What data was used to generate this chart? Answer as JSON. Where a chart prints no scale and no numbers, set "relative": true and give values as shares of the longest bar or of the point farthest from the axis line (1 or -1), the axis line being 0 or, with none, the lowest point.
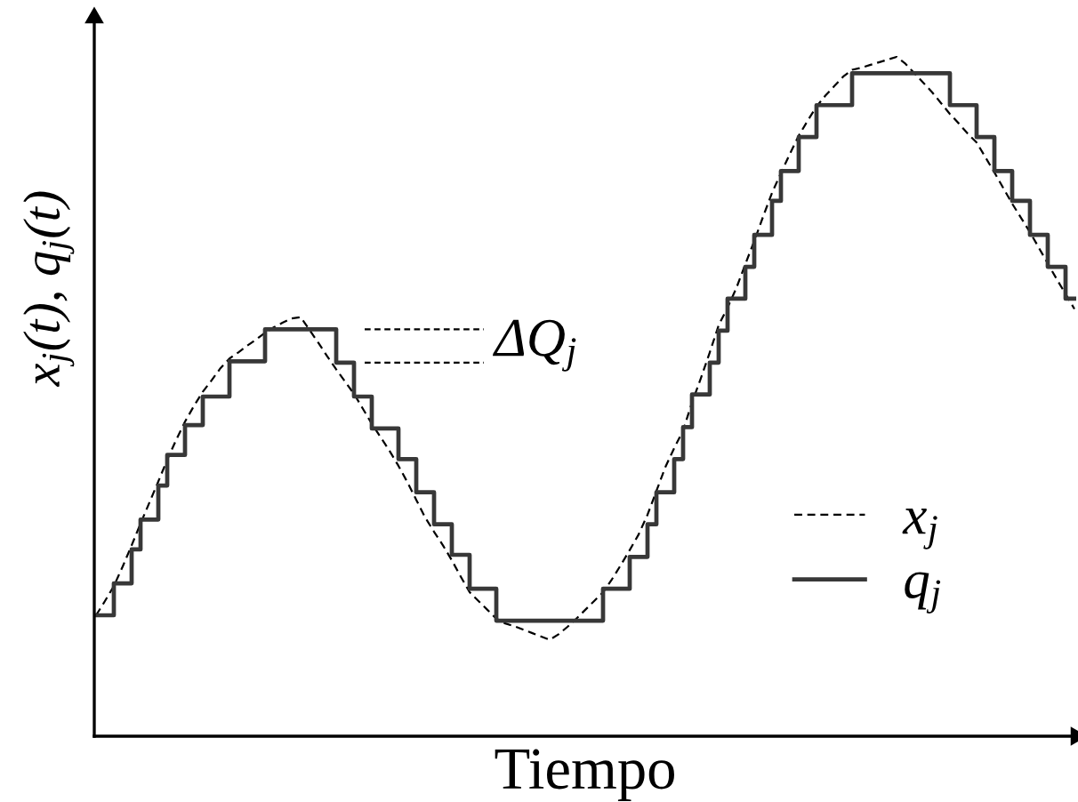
{
  "chart_data": {
    "type": "line",
    "relative": true,
    "xlabel": "Tiempo",
    "ylabel": "x$_{j}$(t), q$_{j}$(t)",
    "legend": "bottom right",
    "annotations": [
      "ΔQ$_{j}$"
    ],
    "categories": [
      null,
      null,
      null,
      null,
      null,
      null,
      null,
      null,
      null,
      null,
      null,
      null,
      null,
      null,
      null,
      null,
      null,
      null,
      null,
      null,
      null,
      null,
      null,
      null,
      null,
      null,
      null,
      null,
      null,
      null,
      null,
      null,
      null,
      null,
      null,
      null,
      null,
      null,
      null,
      null,
      null,
      null,
      null,
      null,
      null,
      null,
      null,
      null,
      null,
      null,
      null,
      null,
      null,
      null,
      null,
      null,
      null,
      null,
      null,
      null,
      null,
      null,
      null,
      null,
      null,
      null,
      null,
      null,
      null,
      null,
      null,
      null,
      null,
      null,
      null,
      null,
      null,
      null,
      null,
      null,
      null,
      null,
      null,
      null,
      null,
      null,
      null,
      null,
      null,
      null,
      null,
      null,
      null,
      null,
      null,
      null,
      null,
      null,
      null,
      null,
      null,
      null,
      null,
      null,
      null,
      null,
      null,
      null,
      null,
      null,
      null
    ],
    "series": [
      {
        "name": "x$_{j}$",
        "line_style": "dashed",
        "color": "#000000",
        "values": [
          0.178,
          0.199,
          0.221,
          0.25,
          0.281,
          0.313,
          0.344,
          0.375,
          0.407,
          0.436,
          0.463,
          0.486,
          0.507,
          0.524,
          0.542,
          0.556,
          0.565,
          0.575,
          0.584,
          0.594,
          0.602,
          0.609,
          0.615,
          0.617,
          0.598,
          0.579,
          0.559,
          0.54,
          0.522,
          0.504,
          0.482,
          0.46,
          0.44,
          0.42,
          0.398,
          0.374,
          0.348,
          0.322,
          0.301,
          0.281,
          0.259,
          0.235,
          0.212,
          0.199,
          0.186,
          0.173,
          0.166,
          0.162,
          0.157,
          0.152,
          0.147,
          0.142,
          0.15,
          0.161,
          0.173,
          0.186,
          0.199,
          0.212,
          0.231,
          0.252,
          0.274,
          0.297,
          0.326,
          0.361,
          0.396,
          0.424,
          0.45,
          0.491,
          0.527,
          0.565,
          0.605,
          0.631,
          0.66,
          0.695,
          0.729,
          0.765,
          0.8,
          0.829,
          0.857,
          0.884,
          0.906,
          0.927,
          0.943,
          0.957,
          0.971,
          0.981,
          0.984,
          0.988,
          0.992,
          0.996,
          1.0,
          0.99,
          0.976,
          0.962,
          0.948,
          0.932,
          0.916,
          0.902,
          0.887,
          0.874,
          0.852,
          0.83,
          0.807,
          0.784,
          0.763,
          0.742,
          0.719,
          0.696,
          0.673,
          0.651,
          0.629
        ]
      },
      {
        "name": "q$_{j}$",
        "type": "step",
        "line_style": "solid",
        "color": "#383838",
        "values": [
          0.178,
          0.178,
          0.225,
          0.225,
          0.275,
          0.319,
          0.319,
          0.369,
          0.414,
          0.414,
          0.458,
          0.458,
          0.5,
          0.5,
          0.5,
          0.552,
          0.552,
          0.552,
          0.552,
          0.599,
          0.599,
          0.599,
          0.599,
          0.599,
          0.599,
          0.599,
          0.599,
          0.55,
          0.55,
          0.5,
          0.5,
          0.453,
          0.453,
          0.453,
          0.408,
          0.408,
          0.359,
          0.359,
          0.312,
          0.312,
          0.267,
          0.267,
          0.217,
          0.217,
          0.217,
          0.17,
          0.17,
          0.17,
          0.17,
          0.17,
          0.17,
          0.17,
          0.17,
          0.17,
          0.17,
          0.17,
          0.17,
          0.217,
          0.217,
          0.217,
          0.264,
          0.264,
          0.312,
          0.359,
          0.359,
          0.408,
          0.455,
          0.503,
          0.503,
          0.55,
          0.597,
          0.644,
          0.644,
          0.691,
          0.738,
          0.738,
          0.788,
          0.832,
          0.832,
          0.882,
          0.882,
          0.929,
          0.929,
          0.929,
          0.929,
          0.976,
          0.976,
          0.976,
          0.976,
          0.976,
          0.976,
          0.976,
          0.976,
          0.976,
          0.976,
          0.976,
          0.929,
          0.929,
          0.929,
          0.882,
          0.882,
          0.832,
          0.832,
          0.788,
          0.788,
          0.738,
          0.738,
          0.691,
          0.691,
          0.644,
          0.644
        ]
      }
    ]
  }
}
